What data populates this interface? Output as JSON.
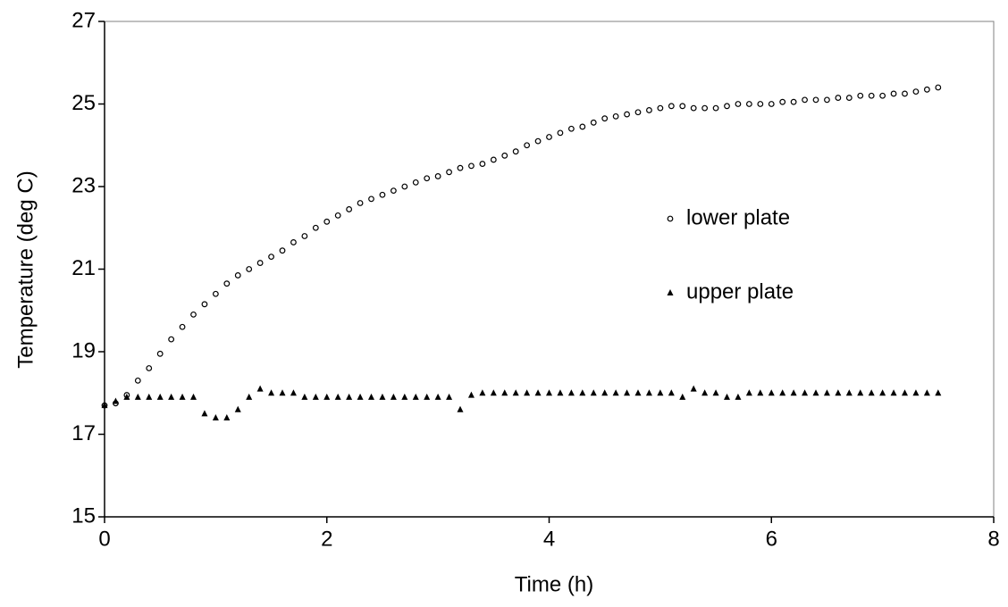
{
  "chart_data": {
    "type": "scatter",
    "x_label": "Time (h)",
    "y_label": "Temperature (deg C)",
    "x": [
      0,
      0.1,
      0.2,
      0.3,
      0.4,
      0.5,
      0.6,
      0.7,
      0.8,
      0.9,
      1.0,
      1.1,
      1.2,
      1.3,
      1.4,
      1.5,
      1.6,
      1.7,
      1.8,
      1.9,
      2.0,
      2.1,
      2.2,
      2.3,
      2.4,
      2.5,
      2.6,
      2.7,
      2.8,
      2.9,
      3.0,
      3.1,
      3.2,
      3.3,
      3.4,
      3.5,
      3.6,
      3.7,
      3.8,
      3.9,
      4.0,
      4.1,
      4.2,
      4.3,
      4.4,
      4.5,
      4.6,
      4.7,
      4.8,
      4.9,
      5.0,
      5.1,
      5.2,
      5.3,
      5.4,
      5.5,
      5.6,
      5.7,
      5.8,
      5.9,
      6.0,
      6.1,
      6.2,
      6.3,
      6.4,
      6.5,
      6.6,
      6.7,
      6.8,
      6.9,
      7.0,
      7.1,
      7.2,
      7.3,
      7.4,
      7.5
    ],
    "series": [
      {
        "name": "lower plate",
        "color": "#000000",
        "marker": "circle",
        "values": [
          17.7,
          17.75,
          17.95,
          18.3,
          18.6,
          18.95,
          19.3,
          19.6,
          19.9,
          20.15,
          20.4,
          20.65,
          20.85,
          21.0,
          21.15,
          21.3,
          21.45,
          21.65,
          21.8,
          22.0,
          22.15,
          22.3,
          22.45,
          22.6,
          22.7,
          22.8,
          22.9,
          23.0,
          23.1,
          23.2,
          23.25,
          23.35,
          23.45,
          23.5,
          23.55,
          23.65,
          23.75,
          23.85,
          24.0,
          24.1,
          24.2,
          24.3,
          24.4,
          24.45,
          24.55,
          24.65,
          24.7,
          24.75,
          24.8,
          24.85,
          24.9,
          24.95,
          24.95,
          24.9,
          24.9,
          24.9,
          24.95,
          25.0,
          25.0,
          25.0,
          25.0,
          25.05,
          25.05,
          25.1,
          25.1,
          25.1,
          25.15,
          25.15,
          25.2,
          25.2,
          25.2,
          25.25,
          25.25,
          25.3,
          25.35,
          25.4
        ]
      },
      {
        "name": "upper plate",
        "color": "#000000",
        "marker": "triangle",
        "values": [
          17.7,
          17.8,
          17.9,
          17.9,
          17.9,
          17.9,
          17.9,
          17.9,
          17.9,
          17.5,
          17.4,
          17.4,
          17.6,
          17.9,
          18.1,
          18.0,
          18.0,
          18.0,
          17.9,
          17.9,
          17.9,
          17.9,
          17.9,
          17.9,
          17.9,
          17.9,
          17.9,
          17.9,
          17.9,
          17.9,
          17.9,
          17.9,
          17.6,
          17.95,
          18.0,
          18.0,
          18.0,
          18.0,
          18.0,
          18.0,
          18.0,
          18.0,
          18.0,
          18.0,
          18.0,
          18.0,
          18.0,
          18.0,
          18.0,
          18.0,
          18.0,
          18.0,
          17.9,
          18.1,
          18.0,
          18.0,
          17.9,
          17.9,
          18.0,
          18.0,
          18.0,
          18.0,
          18.0,
          18.0,
          18.0,
          18.0,
          18.0,
          18.0,
          18.0,
          18.0,
          18.0,
          18.0,
          18.0,
          18.0,
          18.0,
          18.0
        ]
      }
    ],
    "xlim": [
      0,
      8
    ],
    "xticks": [
      0,
      2,
      4,
      6,
      8
    ],
    "ylim": [
      15,
      27
    ],
    "yticks": [
      15,
      17,
      19,
      21,
      23,
      25,
      27
    ],
    "legend": "right-center"
  }
}
